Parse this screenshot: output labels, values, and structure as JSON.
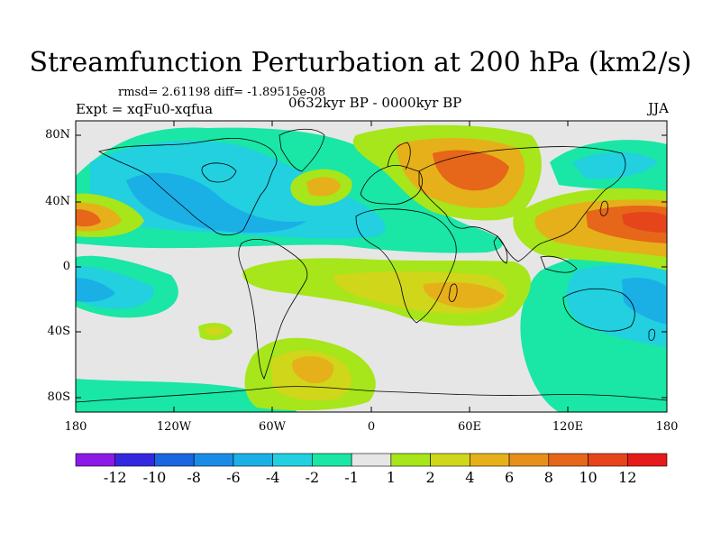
{
  "title": "Streamfunction Perturbation at 200 hPa (km2/s)",
  "stats_line": "rmsd= 2.61198 diff= -1.89515e-08",
  "experiment": "Expt = xqFu0-xqfua",
  "period": "0632kyr BP - 0000kyr BP",
  "season": "JJA",
  "lat_labels": [
    "80N",
    "40N",
    "0",
    "40S",
    "80S"
  ],
  "lon_labels": [
    "180",
    "120W",
    "60W",
    "0",
    "60E",
    "120E",
    "180"
  ],
  "colorbar": {
    "labels": [
      "-12",
      "-10",
      "-8",
      "-6",
      "-4",
      "-2",
      "-1",
      "1",
      "2",
      "4",
      "6",
      "8",
      "10",
      "12"
    ],
    "colors": [
      "#8c1ae6",
      "#3328e0",
      "#1a66e0",
      "#1a8ce6",
      "#1ab0e6",
      "#22d0e0",
      "#1ae6a6",
      "#e6e6e6",
      "#a6e61a",
      "#d0d61a",
      "#e6b01a",
      "#e6901a",
      "#e6661a",
      "#e6441a",
      "#e61a1a"
    ]
  }
}
